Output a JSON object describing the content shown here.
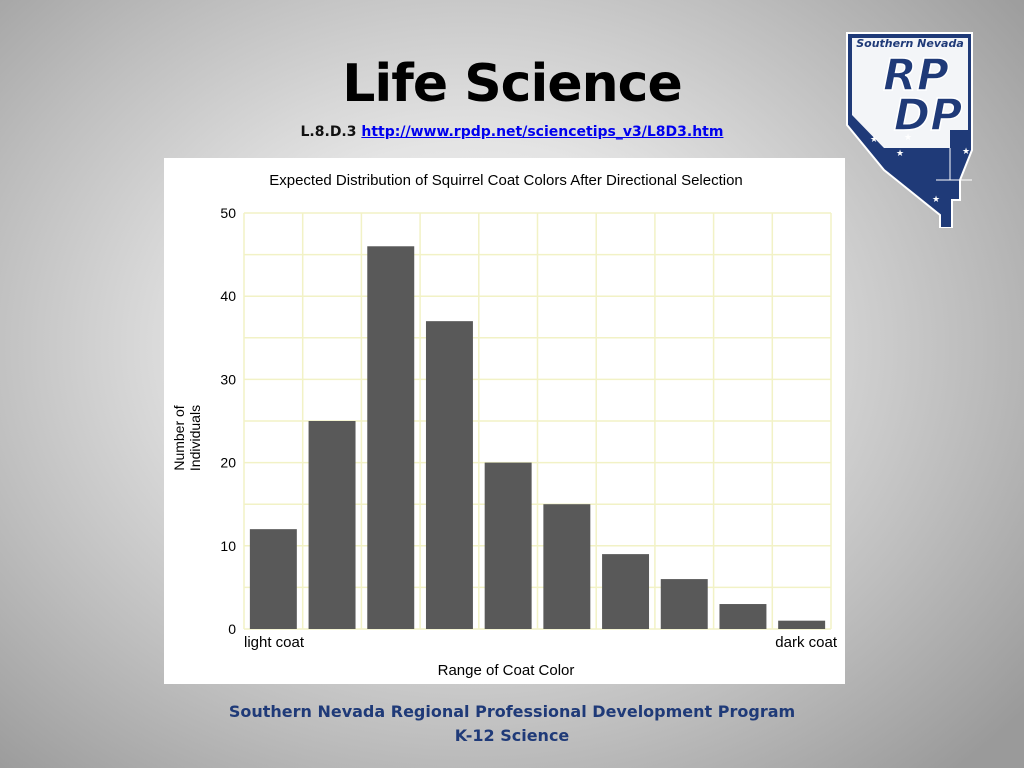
{
  "slide": {
    "title": "Life Science",
    "code": "L.8.D.3",
    "link": "http://www.rpdp.net/sciencetips_v3/L8D3.htm",
    "footer_line1": "Southern Nevada Regional Professional Development Program",
    "footer_line2": "K-12 Science"
  },
  "logo": {
    "region": "Southern Nevada",
    "line1": "RP",
    "line2": "DP",
    "colors": {
      "navy": "#1f3a78",
      "white": "#ffffff"
    }
  },
  "chart_data": {
    "type": "bar",
    "title": "Expected Distribution of Squirrel Coat Colors After Directional Selection",
    "xlabel": "Range of Coat Color",
    "ylabel": "Number of Individuals",
    "ylabel_lines": [
      "Number of",
      "Individuals"
    ],
    "x_end_labels": [
      "light coat",
      "dark coat"
    ],
    "values": [
      12,
      25,
      46,
      37,
      20,
      15,
      9,
      6,
      3,
      1
    ],
    "ylim": [
      0,
      50
    ],
    "yticks": [
      0,
      10,
      20,
      30,
      40,
      50
    ],
    "grid": true,
    "bar_color": "#595959",
    "grid_color": "#f2f2c6"
  }
}
